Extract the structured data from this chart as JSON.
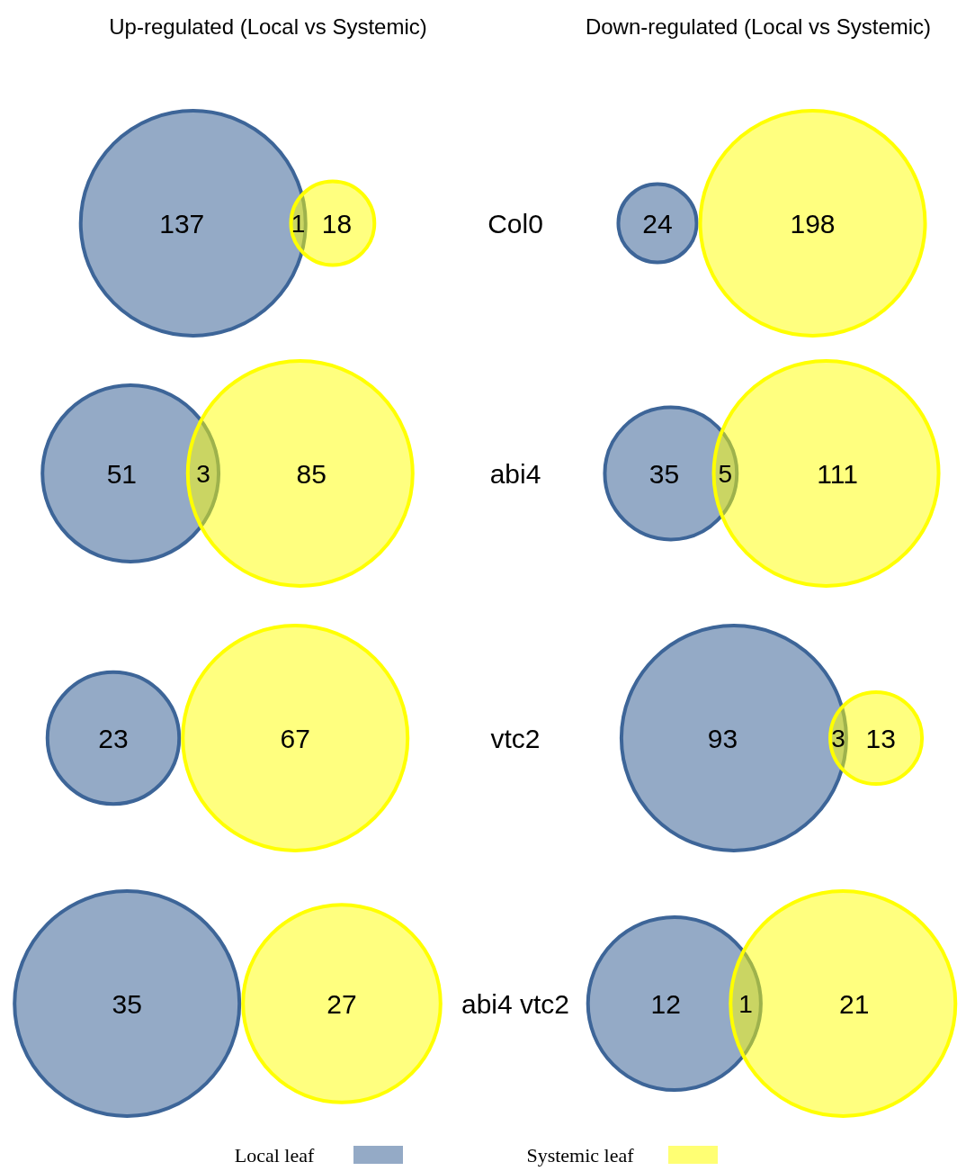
{
  "chart_data": {
    "type": "other",
    "categories": [
      "Col0",
      "abi4",
      "vtc2",
      "abi4 vtc2"
    ],
    "legend": "bottom",
    "data_labels": true,
    "annotations": [
      "Up-regulated (Local vs Systemic)",
      "Down-regulated (Local vs Systemic)"
    ],
    "series": [
      {
        "name": "Local leaf",
        "color": "#3d6598",
        "values": [
          137,
          51,
          23,
          35
        ]
      },
      {
        "name": "Systemic leaf",
        "color": "#ffff00",
        "values": [
          18,
          85,
          67,
          27
        ]
      },
      {
        "values": [
          1,
          3,
          null,
          null
        ]
      },
      {
        "color": "#3d6598",
        "values": [
          24,
          35,
          93,
          12
        ]
      },
      {
        "color": "#ffff00",
        "values": [
          198,
          111,
          13,
          21
        ]
      },
      {
        "values": [
          null,
          5,
          3,
          1
        ]
      }
    ]
  }
}
